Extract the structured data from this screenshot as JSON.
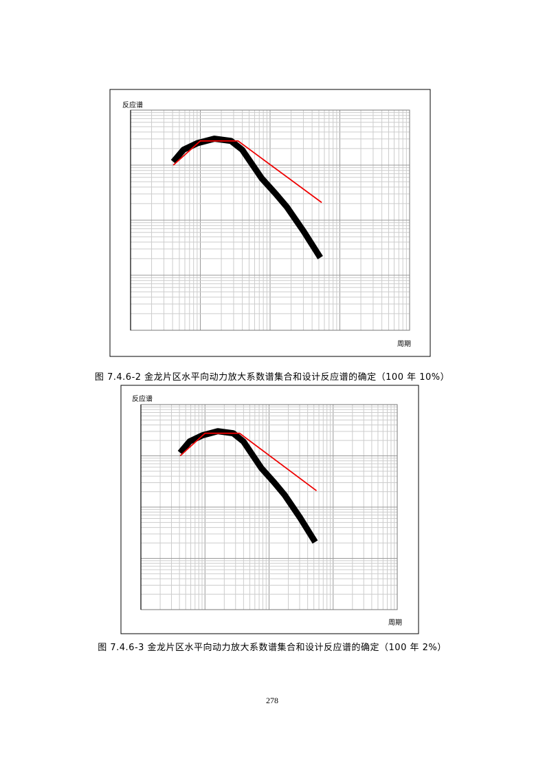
{
  "figures": [
    {
      "y_label": "反应谱",
      "x_label": "周期",
      "caption": "图 7.4.6-2  金龙片区水平向动力放大系数谱集合和设计反应谱的确定（100 年 10%）"
    },
    {
      "y_label": "反应谱",
      "x_label": "周期",
      "caption": "图 7.4.6-3  金龙片区水平向动力放大系数谱集合和设计反应谱的确定（100 年 2%）"
    }
  ],
  "page_number": "278"
}
